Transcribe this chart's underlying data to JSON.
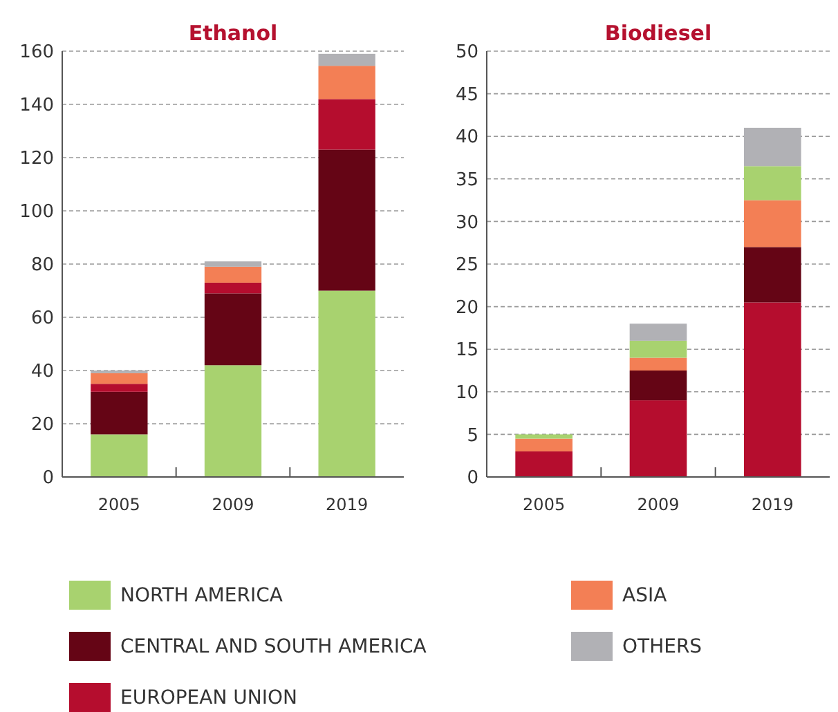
{
  "chart_data": [
    {
      "type": "bar",
      "title": "Ethanol",
      "stacked": true,
      "categories": [
        "2005",
        "2009",
        "2019"
      ],
      "ylim": [
        0,
        160
      ],
      "yticks": [
        0,
        20,
        40,
        60,
        80,
        100,
        120,
        140,
        160
      ],
      "grid": "y",
      "legend": "bottom",
      "series": [
        {
          "name": "NORTH AMERICA",
          "color": "#a8d26f",
          "values": [
            16,
            42,
            70
          ]
        },
        {
          "name": "CENTRAL AND SOUTH AMERICA",
          "color": "#650515",
          "values": [
            16,
            27,
            53
          ]
        },
        {
          "name": "EUROPEAN UNION",
          "color": "#b50d2e",
          "values": [
            3,
            4,
            19
          ]
        },
        {
          "name": "ASIA",
          "color": "#f37f55",
          "values": [
            4,
            6,
            12.5
          ]
        },
        {
          "name": "OTHERS",
          "color": "#b1b1b5",
          "values": [
            1,
            2,
            4.5
          ]
        }
      ]
    },
    {
      "type": "bar",
      "title": "Biodiesel",
      "stacked": true,
      "categories": [
        "2005",
        "2009",
        "2019"
      ],
      "ylim": [
        0,
        50
      ],
      "yticks": [
        0,
        5,
        10,
        15,
        20,
        25,
        30,
        35,
        40,
        45,
        50
      ],
      "grid": "y",
      "series": [
        {
          "name": "EUROPEAN UNION",
          "color": "#b50d2e",
          "values": [
            3,
            9,
            20.5
          ]
        },
        {
          "name": "CENTRAL AND SOUTH AMERICA",
          "color": "#650515",
          "values": [
            0,
            3.5,
            6.5
          ]
        },
        {
          "name": "ASIA",
          "color": "#f37f55",
          "values": [
            1.5,
            1.5,
            5.5
          ]
        },
        {
          "name": "NORTH AMERICA",
          "color": "#a8d26f",
          "values": [
            0.5,
            2,
            4
          ]
        },
        {
          "name": "OTHERS",
          "color": "#b1b1b5",
          "values": [
            0,
            2,
            4.5
          ]
        }
      ]
    }
  ]
}
